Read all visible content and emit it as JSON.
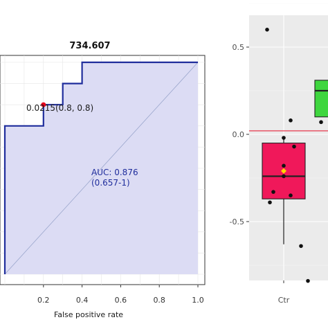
{
  "chart_data": [
    {
      "type": "line",
      "subtype": "roc",
      "title": "734.607",
      "xlabel": "False positive rate",
      "ylabel": "",
      "xlim": [
        0,
        1
      ],
      "ylim": [
        0,
        1
      ],
      "x_ticks": [
        "0.2",
        "0.4",
        "0.6",
        "0.8",
        "1.0"
      ],
      "x_tick_values": [
        0.2,
        0.4,
        0.6,
        0.8,
        1.0
      ],
      "grid": true,
      "fill_area": true,
      "colors": {
        "curve": "#1f2d9c",
        "fill": "#dcdcf4",
        "diagonal": "#9aa6cc",
        "point": "#e8001c",
        "text": "#1f2d9c"
      },
      "series": [
        {
          "x": [
            0,
            0,
            0,
            0,
            0.1,
            0.2,
            0.2,
            0.3,
            0.3,
            0.4,
            0.4,
            1.0
          ],
          "y": [
            0,
            0.4,
            0.6,
            0.7,
            0.7,
            0.7,
            0.8,
            0.8,
            0.9,
            0.9,
            1.0,
            1.0
          ]
        }
      ],
      "threshold_point": {
        "x": 0.2,
        "y": 0.8,
        "label": "0.0215(0.8, 0.8)"
      },
      "auc_label": "AUC: 0.876",
      "auc_ci_label": "(0.657-1)"
    },
    {
      "type": "box",
      "xlabel": "",
      "ylabel": "",
      "ylim": [
        -0.9,
        0.65
      ],
      "y_ticks": [
        "0.5",
        "0.0",
        "-0.5"
      ],
      "y_tick_values": [
        0.5,
        0.0,
        -0.5
      ],
      "categories": [
        "Ctr"
      ],
      "reference_line": {
        "y": 0.02,
        "color": "#e8233a"
      },
      "colors": {
        "panel_bg": "#ebebeb",
        "grid": "#ffffff",
        "box_ctr": "#f0185a",
        "box_other": "#3ed63e",
        "mean": "#ffd500",
        "point": "#111111",
        "axis_text": "#4d4d4d"
      },
      "boxes": [
        {
          "category": "Ctr",
          "q1": -0.37,
          "median": -0.24,
          "q3": -0.05,
          "whisker_low": -0.63,
          "whisker_high": -0.02,
          "mean": -0.21
        },
        {
          "category": "",
          "q1": 0.1,
          "median": 0.25,
          "q3": 0.31,
          "whisker_low": 0.06,
          "whisker_high": 0.31
        }
      ],
      "points": [
        {
          "x": -0.048,
          "y": 0.6
        },
        {
          "x": 0.02,
          "y": 0.08
        },
        {
          "x": 0.0,
          "y": -0.02
        },
        {
          "x": 0.03,
          "y": -0.07
        },
        {
          "x": 0.0,
          "y": -0.18
        },
        {
          "x": 0.0,
          "y": -0.24
        },
        {
          "x": -0.03,
          "y": -0.33
        },
        {
          "x": 0.02,
          "y": -0.35
        },
        {
          "x": -0.04,
          "y": -0.39
        },
        {
          "x": 0.05,
          "y": -0.64
        },
        {
          "x": 0.07,
          "y": -0.84
        },
        {
          "x": 0.25,
          "y": 0.07
        }
      ]
    }
  ]
}
